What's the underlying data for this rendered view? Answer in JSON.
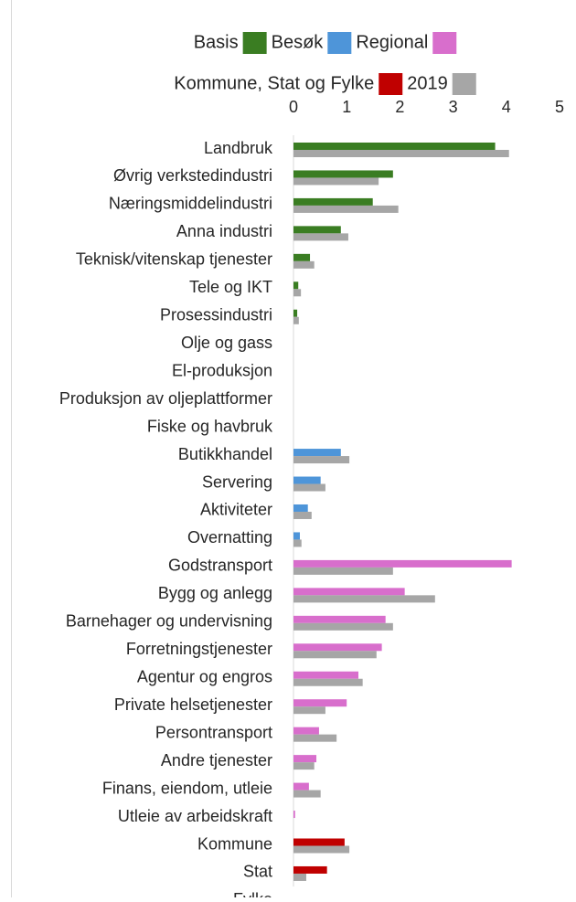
{
  "chart_data": {
    "type": "bar",
    "orientation": "horizontal",
    "categories": [
      "Landbruk",
      "Øvrig verkstedindustri",
      "Næringsmiddelindustri",
      "Anna industri",
      "Teknisk/vitenskap tjenester",
      "Tele og IKT",
      "Prosessindustri",
      "Olje og gass",
      "El-produksjon",
      "Produksjon av oljeplattformer",
      "Fiske og havbruk",
      "Butikkhandel",
      "Servering",
      "Aktiviteter",
      "Overnatting",
      "Godstransport",
      "Bygg og anlegg",
      "Barnehager og undervisning",
      "Forretningstjenester",
      "Agentur og engros",
      "Private helsetjenester",
      "Persontransport",
      "Andre tjenester",
      "Finans, eiendom, utleie",
      "Utleie av arbeidskraft",
      "Kommune",
      "Stat",
      "Fylke"
    ],
    "series": [
      {
        "name": "Basis",
        "color": "#3a7d22",
        "values": [
          3.79,
          1.87,
          1.49,
          0.89,
          0.31,
          0.09,
          0.07,
          null,
          null,
          null,
          null,
          null,
          null,
          null,
          null,
          null,
          null,
          null,
          null,
          null,
          null,
          null,
          null,
          null,
          null,
          null,
          null,
          null
        ]
      },
      {
        "name": "Besøk",
        "color": "#4e95d9",
        "values": [
          null,
          null,
          null,
          null,
          null,
          null,
          null,
          null,
          null,
          null,
          null,
          0.89,
          0.51,
          0.27,
          0.12,
          null,
          null,
          null,
          null,
          null,
          null,
          null,
          null,
          null,
          null,
          null,
          null,
          null
        ]
      },
      {
        "name": "Regional",
        "color": "#d86ecc",
        "values": [
          null,
          null,
          null,
          null,
          null,
          null,
          null,
          null,
          null,
          null,
          null,
          null,
          null,
          null,
          null,
          4.1,
          2.09,
          1.73,
          1.66,
          1.22,
          1.0,
          0.48,
          0.43,
          0.29,
          0.03,
          null,
          null,
          null
        ]
      },
      {
        "name": "Kommune, Stat og Fylke",
        "color": "#c00000",
        "values": [
          null,
          null,
          null,
          null,
          null,
          null,
          null,
          null,
          null,
          null,
          null,
          null,
          null,
          null,
          null,
          null,
          null,
          null,
          null,
          null,
          null,
          null,
          null,
          null,
          null,
          0.96,
          0.63,
          null
        ]
      },
      {
        "name": "2019",
        "color": "#a6a6a6",
        "values": [
          4.05,
          1.6,
          1.97,
          1.03,
          0.39,
          0.14,
          0.1,
          null,
          null,
          null,
          null,
          1.05,
          0.6,
          0.34,
          0.15,
          1.87,
          2.66,
          1.87,
          1.56,
          1.3,
          0.6,
          0.81,
          0.39,
          0.51,
          0,
          1.05,
          0.24,
          null
        ]
      }
    ],
    "xlim": [
      0,
      5
    ],
    "xticks": [
      0,
      1,
      2,
      3,
      4,
      5
    ]
  }
}
